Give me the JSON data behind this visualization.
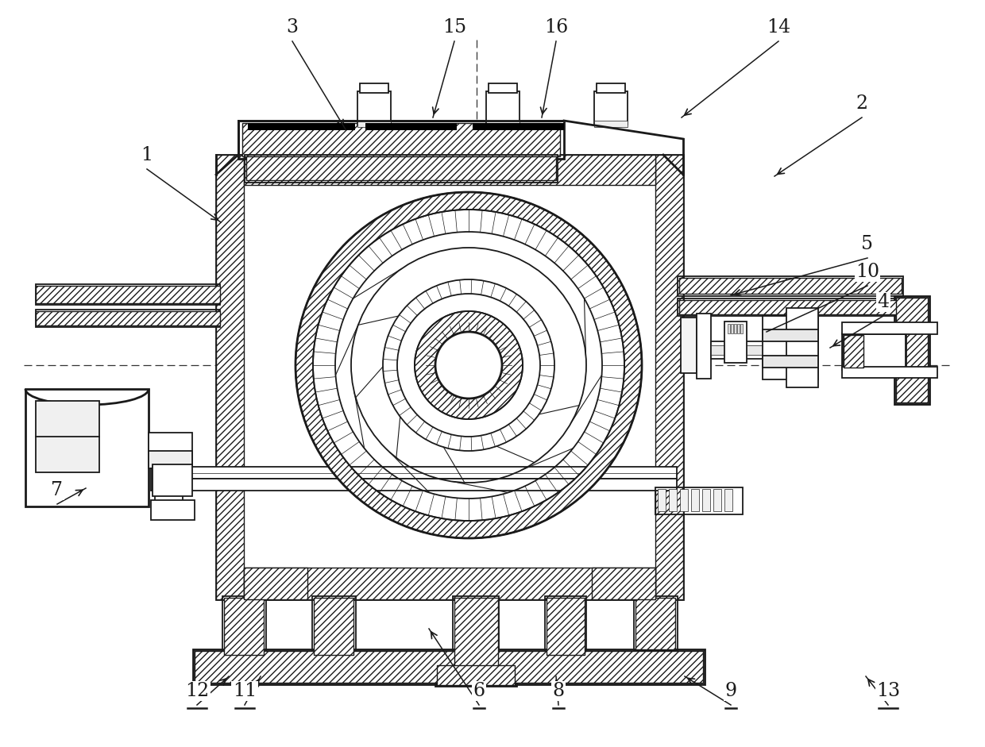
{
  "bg_color": "#ffffff",
  "line_color": "#1a1a1a",
  "figsize": [
    12.4,
    9.41
  ],
  "dpi": 100,
  "label_defs": [
    [
      "1",
      185,
      213,
      278,
      280,
      false
    ],
    [
      "2",
      1085,
      148,
      975,
      222,
      false
    ],
    [
      "3",
      368,
      52,
      435,
      163,
      false
    ],
    [
      "4",
      1112,
      398,
      1045,
      438,
      false
    ],
    [
      "5",
      1092,
      325,
      920,
      372,
      false
    ],
    [
      "6",
      603,
      888,
      540,
      792,
      true
    ],
    [
      "7",
      72,
      635,
      108,
      615,
      false
    ],
    [
      "8",
      703,
      888,
      700,
      852,
      true
    ],
    [
      "9",
      920,
      888,
      862,
      852,
      true
    ],
    [
      "10",
      1092,
      360,
      965,
      418,
      false
    ],
    [
      "11",
      308,
      888,
      328,
      852,
      true
    ],
    [
      "12",
      248,
      888,
      288,
      852,
      true
    ],
    [
      "13",
      1118,
      888,
      1090,
      852,
      true
    ],
    [
      "14",
      980,
      52,
      858,
      148,
      false
    ],
    [
      "15",
      572,
      52,
      545,
      148,
      false
    ],
    [
      "16",
      700,
      52,
      682,
      148,
      false
    ]
  ]
}
